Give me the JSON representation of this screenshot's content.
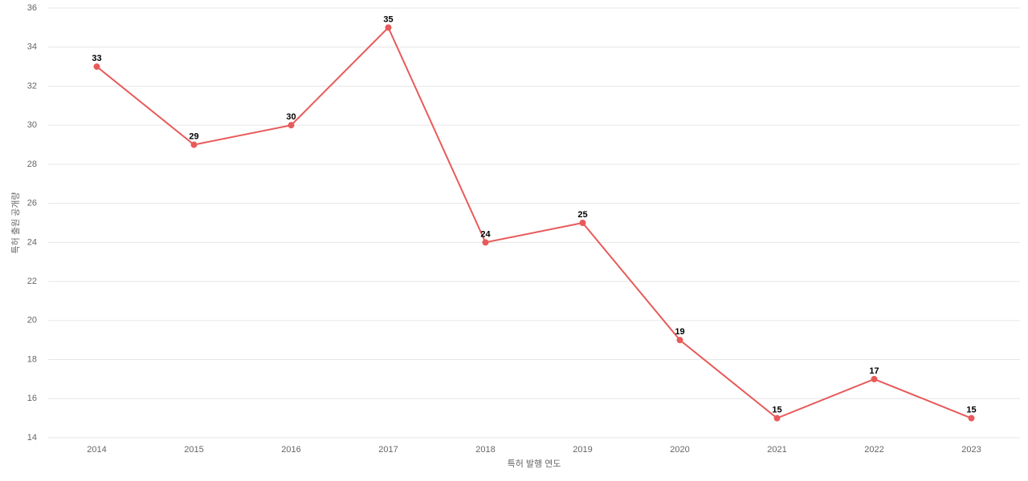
{
  "chart_data": {
    "type": "line",
    "x_label": "특허 발행 연도",
    "y_label": "특허 출원 공개량",
    "categories": [
      "2014",
      "2015",
      "2016",
      "2017",
      "2018",
      "2019",
      "2020",
      "2021",
      "2022",
      "2023"
    ],
    "values": [
      33,
      29,
      30,
      35,
      24,
      25,
      19,
      15,
      17,
      15
    ],
    "color": "#e85a5a",
    "ylim": [
      14,
      36
    ],
    "yticks": [
      14,
      16,
      18,
      20,
      22,
      24,
      26,
      28,
      30,
      32,
      34,
      36
    ],
    "grid": true
  }
}
